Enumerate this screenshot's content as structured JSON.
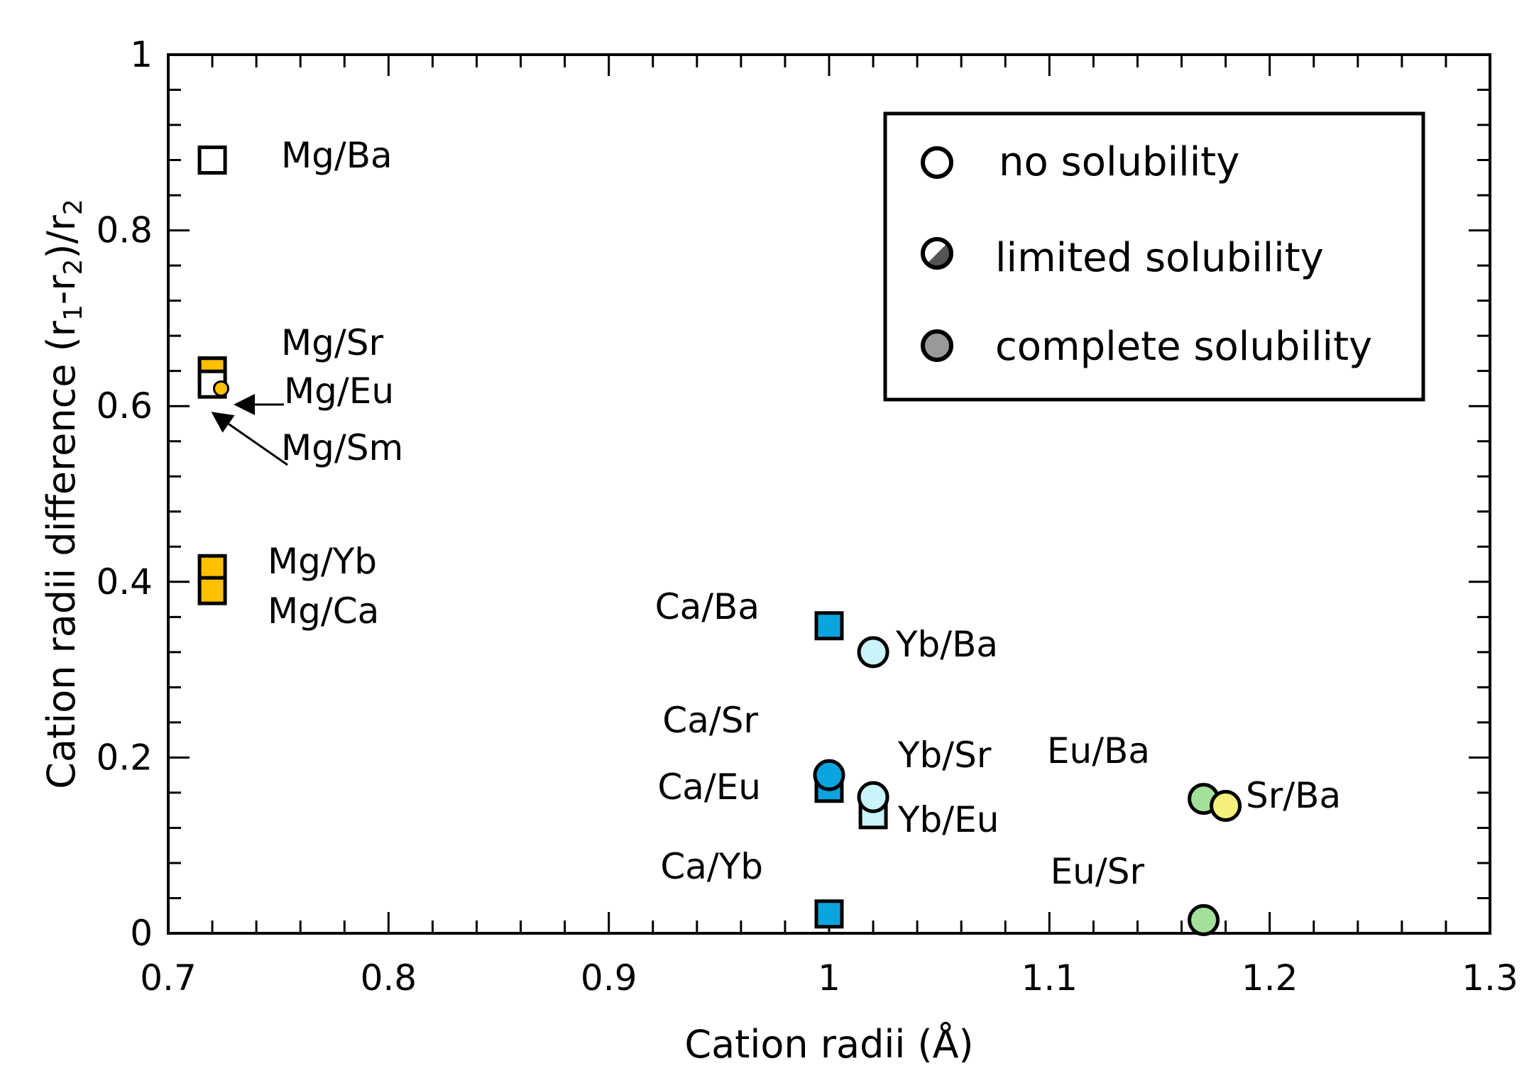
{
  "chart_data": {
    "type": "scatter",
    "xlabel": "Cation radii (Å)",
    "ylabel": {
      "parts": [
        "Cation radii difference (r",
        "1",
        "-r",
        "2",
        ")/r",
        "2"
      ]
    },
    "xlim": [
      0.7,
      1.3
    ],
    "ylim": [
      0,
      1
    ],
    "x_ticks": [
      "0.7",
      "0.8",
      "0.9",
      "1",
      "1.1",
      "1.2",
      "1.3"
    ],
    "y_ticks": [
      "0",
      "0.2",
      "0.4",
      "0.6",
      "0.8",
      "1"
    ],
    "grid": false,
    "legend": {
      "placement": "top-right",
      "entries": [
        {
          "label": "no solubility",
          "style": "open"
        },
        {
          "label": "limited solubility",
          "style": "half"
        },
        {
          "label": "complete solubility",
          "style": "filled"
        }
      ]
    },
    "points": [
      {
        "label": "Mg/Ba",
        "x": 0.72,
        "y": 0.88,
        "marker": "square",
        "fill": "open",
        "color": "#ffffff"
      },
      {
        "label": "Mg/Sr",
        "x": 0.72,
        "y": 0.64,
        "marker": "square",
        "fill": "half",
        "color": "#FFC000"
      },
      {
        "label": "Mg/Sm",
        "x": 0.72,
        "y": 0.625,
        "marker": "square",
        "fill": "open",
        "color": "#ffffff"
      },
      {
        "label": "Mg/Eu",
        "x": 0.724,
        "y": 0.62,
        "marker": "circle-small",
        "fill": "half",
        "color": "#FFC000"
      },
      {
        "label": "Mg/Yb",
        "x": 0.72,
        "y": 0.415,
        "marker": "square",
        "fill": "filled",
        "color": "#FFC000"
      },
      {
        "label": "Mg/Ca",
        "x": 0.72,
        "y": 0.39,
        "marker": "square",
        "fill": "filled",
        "color": "#FFC000"
      },
      {
        "label": "Ca/Ba",
        "x": 1.0,
        "y": 0.35,
        "marker": "square",
        "fill": "filled",
        "color": "#0AA5E0"
      },
      {
        "label": "Yb/Ba",
        "x": 1.02,
        "y": 0.32,
        "marker": "circle",
        "fill": "filled",
        "color": "#C8F4FA"
      },
      {
        "label": "Ca/Eu",
        "x": 1.0,
        "y": 0.165,
        "marker": "square",
        "fill": "filled",
        "color": "#0AA5E0"
      },
      {
        "label": "Ca/Sr",
        "x": 1.0,
        "y": 0.18,
        "marker": "circle",
        "fill": "filled",
        "color": "#0AA5E0"
      },
      {
        "label": "Yb/Eu",
        "x": 1.02,
        "y": 0.135,
        "marker": "square",
        "fill": "filled",
        "color": "#C8F4FA"
      },
      {
        "label": "Yb/Sr",
        "x": 1.02,
        "y": 0.155,
        "marker": "circle",
        "fill": "filled",
        "color": "#C8F4FA"
      },
      {
        "label": "Ca/Yb",
        "x": 1.0,
        "y": 0.022,
        "marker": "square",
        "fill": "filled",
        "color": "#0AA5E0"
      },
      {
        "label": "Eu/Ba",
        "x": 1.17,
        "y": 0.153,
        "marker": "circle",
        "fill": "filled",
        "color": "#A3E09A"
      },
      {
        "label": "Sr/Ba",
        "x": 1.18,
        "y": 0.145,
        "marker": "circle",
        "fill": "filled",
        "color": "#F5F07A"
      },
      {
        "label": "Eu/Sr",
        "x": 1.17,
        "y": 0.015,
        "marker": "circle",
        "fill": "filled",
        "color": "#A3E09A"
      }
    ]
  }
}
